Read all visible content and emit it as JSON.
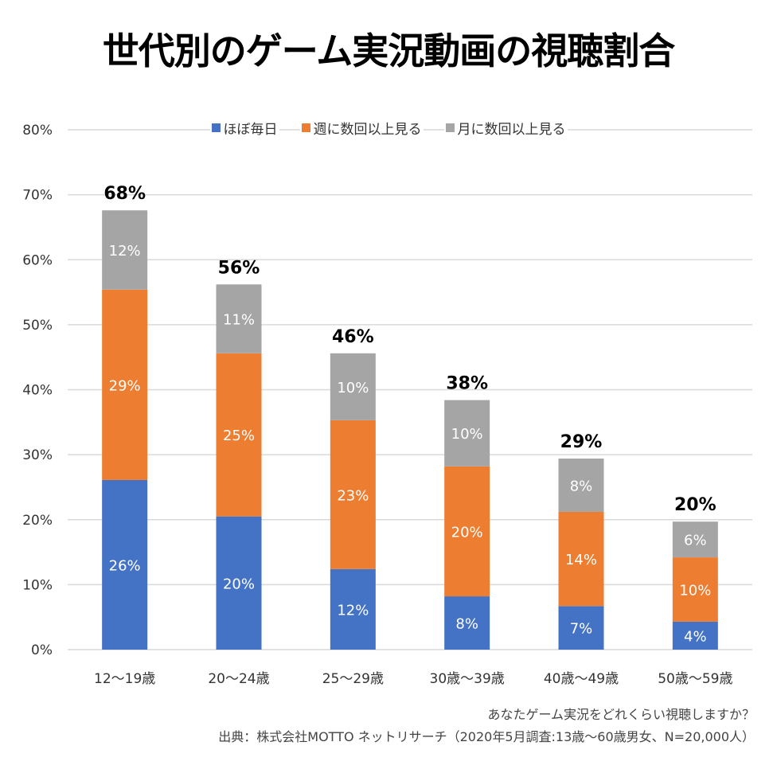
{
  "chart_data": {
    "type": "bar",
    "stacked": true,
    "title": "世代別のゲーム実況動画の視聴割合",
    "categories": [
      "12〜19歳",
      "20〜24歳",
      "25〜29歳",
      "30歳〜39歳",
      "40歳〜49歳",
      "50歳〜59歳"
    ],
    "series": [
      {
        "name": "ほぼ毎日",
        "color": "#4472C4",
        "values": [
          26.1,
          20.5,
          12.4,
          8.2,
          6.7,
          4.3
        ],
        "labels": [
          "26%",
          "20%",
          "12%",
          "8%",
          "7%",
          "4%"
        ]
      },
      {
        "name": "週に数回以上見る",
        "color": "#ED7D31",
        "values": [
          29.3,
          25.1,
          22.9,
          20.0,
          14.5,
          9.9
        ],
        "labels": [
          "29%",
          "25%",
          "23%",
          "20%",
          "14%",
          "10%"
        ]
      },
      {
        "name": "月に数回以上見る",
        "color": "#A5A5A5",
        "values": [
          12.2,
          10.6,
          10.3,
          10.2,
          8.2,
          5.5
        ],
        "labels": [
          "12%",
          "11%",
          "10%",
          "10%",
          "8%",
          "6%"
        ]
      }
    ],
    "totals": [
      "68%",
      "56%",
      "46%",
      "38%",
      "29%",
      "20%"
    ],
    "yticks": [
      "0%",
      "10%",
      "20%",
      "30%",
      "40%",
      "50%",
      "60%",
      "70%",
      "80%"
    ],
    "ylim": [
      0,
      80
    ],
    "grid": true,
    "legend": "top-center",
    "xlabel": "",
    "ylabel": ""
  },
  "footer": {
    "question": "あなたゲーム実況をどれくらい視聴しますか？",
    "source": "出典：株式会社MOTTO ネットリサーチ（2020年5月調査:13歳〜60歳男女、N=20,000人）"
  }
}
